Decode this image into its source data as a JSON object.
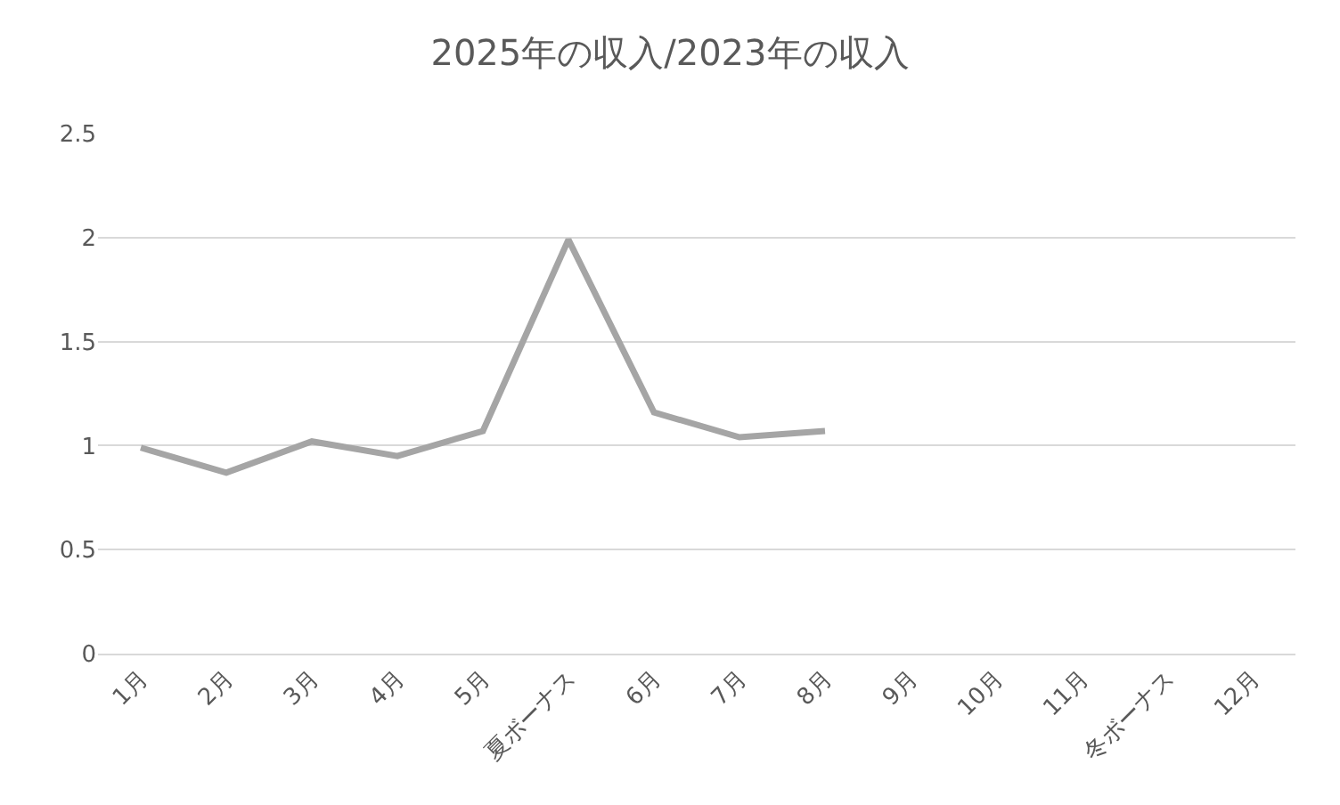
{
  "chart_data": {
    "type": "line",
    "title": "2025年の収入/2023年の収入",
    "categories": [
      "1月",
      "2月",
      "3月",
      "4月",
      "5月",
      "夏ボーナス",
      "6月",
      "7月",
      "8月",
      "9月",
      "10月",
      "11月",
      "冬ボーナス",
      "12月"
    ],
    "series": [
      {
        "color": "#a5a5a5",
        "values": [
          0.99,
          0.87,
          1.02,
          0.95,
          1.07,
          1.99,
          1.16,
          1.04,
          1.07,
          null,
          null,
          null,
          null,
          null
        ]
      }
    ],
    "ylim": [
      0,
      2.5
    ],
    "yticks": [
      0,
      0.5,
      1,
      1.5,
      2,
      2.5
    ],
    "grid": "y",
    "marker": "none",
    "line_style": "solid"
  }
}
